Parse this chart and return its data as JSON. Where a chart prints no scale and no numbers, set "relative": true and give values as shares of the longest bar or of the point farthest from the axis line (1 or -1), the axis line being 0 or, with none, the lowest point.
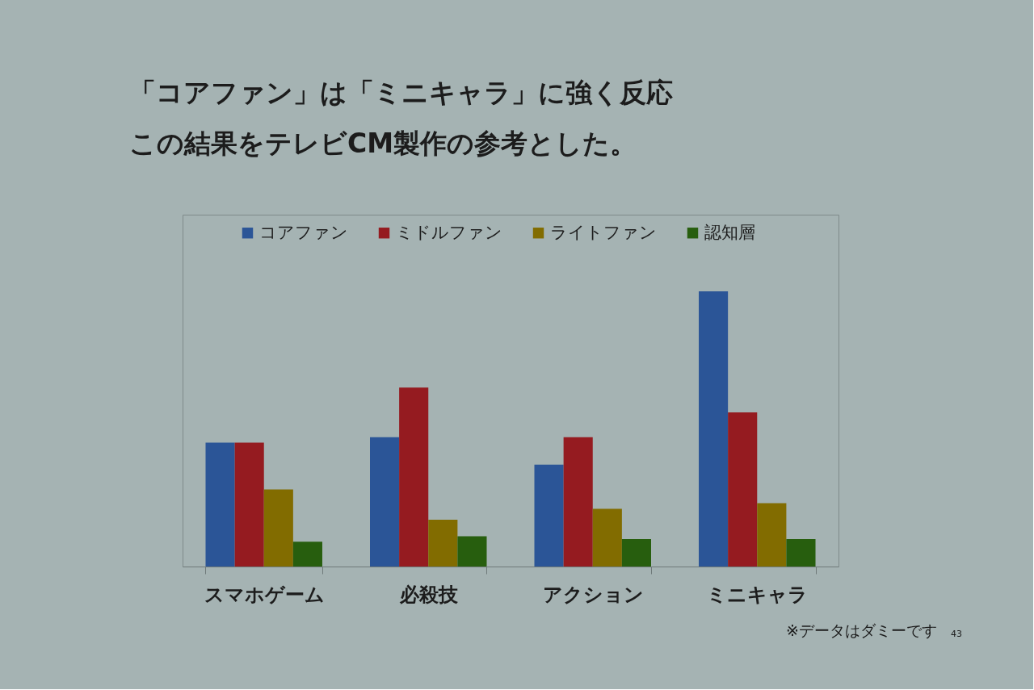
{
  "chart_data": {
    "type": "bar",
    "title": "「コアファン」は「ミニキャラ」に強く反応",
    "subtitle": "この結果をテレビCM製作の参考とした。",
    "categories": [
      "スマホゲーム",
      "必殺技",
      "アクション",
      "ミニキャラ"
    ],
    "relative": true,
    "series": [
      {
        "name": "コアファン",
        "color": "#2b5597",
        "values": [
          0.45,
          0.47,
          0.37,
          1
        ]
      },
      {
        "name": "ミドルファン",
        "color": "#951b20",
        "values": [
          0.45,
          0.65,
          0.47,
          0.56
        ]
      },
      {
        "name": "ライトファン",
        "color": "#826c00",
        "values": [
          0.28,
          0.17,
          0.21,
          0.23
        ]
      },
      {
        "name": "認知層",
        "color": "#275e0e",
        "values": [
          0.09,
          0.11,
          0.1,
          0.1
        ]
      }
    ],
    "legend": "top",
    "annotations": [
      "※データはダミーです",
      "43"
    ]
  }
}
